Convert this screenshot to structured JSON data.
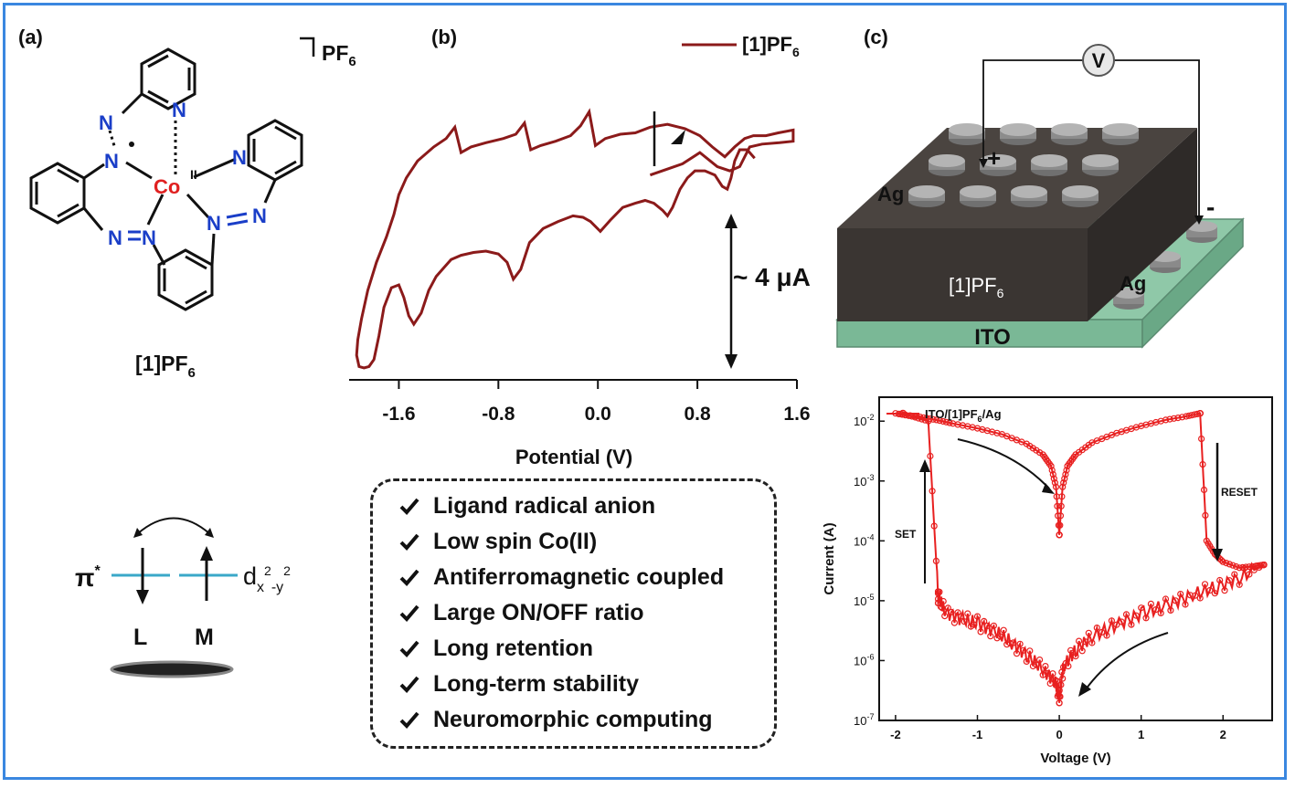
{
  "panels": {
    "a": {
      "label": "(a)",
      "compound": "[1]PF",
      "compound_sub": "6",
      "counterion": "PF",
      "counterion_sub": "6",
      "atoms": {
        "N": "N",
        "Co": "Co",
        "Co_ox": "II"
      },
      "orbital": {
        "pi": "π",
        "pi_sup": "*",
        "d": "d",
        "d_x": "x",
        "d_sup2": "2",
        "d_y": "-y",
        "d_sup2b": "2",
        "L": "L",
        "M": "M"
      }
    },
    "b": {
      "label": "(b)"
    },
    "c": {
      "label": "(c)",
      "device": {
        "voltmeter": "V",
        "plus": "+",
        "minus": "-",
        "electrode_top": "Ag",
        "electrode_side": "Ag",
        "film": "[1]PF",
        "film_sub": "6",
        "substrate": "ITO"
      }
    }
  },
  "colors": {
    "cv_trace": "#8b1a1a",
    "iv_trace": "#e82020",
    "frame": "#3a87e0",
    "device_dark": "#3a3532",
    "ito": "#8fc8a8",
    "orbital_line": "#3aa8c8"
  },
  "checklist": [
    "Ligand radical anion",
    "Low spin Co(II)",
    "Antiferromagnetic coupled",
    "Large ON/OFF ratio",
    "Long retention",
    "Long-term stability",
    "Neuromorphic computing"
  ],
  "chart_data": [
    {
      "type": "line",
      "title": "",
      "legend": [
        "[1]PF6"
      ],
      "legend_text": "[1]PF",
      "legend_sub": "6",
      "legend_position": "top-right",
      "xlabel": "Potential (V)",
      "ylabel": "",
      "xlim": [
        -2.0,
        1.6
      ],
      "xticks": [
        -1.6,
        -0.8,
        0.0,
        0.8,
        1.6
      ],
      "xtick_labels": [
        "-1.6",
        "-0.8",
        "0.0",
        "0.8",
        "1.6"
      ],
      "scale_bar_label": "~ 4 μA",
      "scale_bar_ua": 4,
      "ylim_ua": [
        -19.5,
        1.0
      ],
      "series": [
        {
          "name": "[1]PF6",
          "x": [
            0.42,
            0.55,
            0.68,
            0.82,
            0.96,
            1.06,
            1.14,
            1.22,
            1.32,
            1.46,
            1.57,
            1.57,
            1.45,
            1.35,
            1.25,
            1.18,
            1.1,
            1.02,
            0.92,
            0.82,
            0.7,
            0.56,
            0.42,
            0.3,
            0.18,
            0.06,
            -0.02,
            -0.07,
            -0.14,
            -0.22,
            -0.34,
            -0.46,
            -0.54,
            -0.59,
            -0.66,
            -0.76,
            -0.9,
            -1.02,
            -1.1,
            -1.15,
            -1.22,
            -1.32,
            -1.45,
            -1.54,
            -1.6,
            -1.64,
            -1.7,
            -1.78,
            -1.85,
            -1.9,
            -1.93,
            -1.94,
            -1.92,
            -1.88,
            -1.84,
            -1.8,
            -1.76,
            -1.72,
            -1.66,
            -1.6,
            -1.56,
            -1.52,
            -1.48,
            -1.42,
            -1.36,
            -1.3,
            -1.24,
            -1.18,
            -1.1,
            -1.0,
            -0.9,
            -0.8,
            -0.73,
            -0.68,
            -0.62,
            -0.55,
            -0.44,
            -0.32,
            -0.2,
            -0.12,
            -0.06,
            0.02,
            0.1,
            0.2,
            0.3,
            0.38,
            0.45,
            0.52,
            0.56,
            0.6,
            0.66,
            0.72,
            0.78,
            0.86,
            0.94,
            1.0,
            1.04,
            1.07,
            1.1,
            1.14,
            1.2,
            1.26
          ],
          "y_ua": [
            -5.6,
            -5.2,
            -4.8,
            -4.0,
            -5.0,
            -5.3,
            -5.0,
            -3.6,
            -3.4,
            -3.3,
            -3.2,
            -2.4,
            -2.6,
            -2.8,
            -2.8,
            -3.0,
            -3.6,
            -4.3,
            -3.6,
            -2.8,
            -2.3,
            -2.0,
            -2.2,
            -2.6,
            -2.7,
            -3.0,
            -3.5,
            -1.1,
            -2.1,
            -2.8,
            -3.2,
            -3.5,
            -3.8,
            -1.9,
            -2.7,
            -3.0,
            -3.3,
            -3.6,
            -4.0,
            -2.2,
            -3.0,
            -3.6,
            -4.6,
            -5.8,
            -7.0,
            -8.4,
            -10.0,
            -11.8,
            -13.8,
            -15.8,
            -17.3,
            -18.4,
            -19.2,
            -19.3,
            -19.2,
            -18.7,
            -17.0,
            -15.0,
            -13.6,
            -13.4,
            -14.3,
            -15.6,
            -16.2,
            -15.4,
            -13.8,
            -12.8,
            -12.2,
            -11.6,
            -11.3,
            -11.1,
            -11.0,
            -11.2,
            -11.8,
            -13.0,
            -12.3,
            -10.4,
            -9.4,
            -8.9,
            -8.5,
            -8.6,
            -8.9,
            -9.6,
            -8.8,
            -7.9,
            -7.6,
            -7.4,
            -7.6,
            -8.1,
            -8.5,
            -7.9,
            -6.6,
            -5.8,
            -5.3,
            -5.3,
            -5.6,
            -6.4,
            -6.6,
            -5.8,
            -4.6,
            -3.8,
            -3.8,
            -4.4
          ]
        }
      ],
      "arrow_annotation": "scan direction"
    },
    {
      "type": "line",
      "title": "",
      "legend": [
        "ITO/[1]PF6/Ag"
      ],
      "legend_text": "ITO/[1]PF",
      "legend_sub": "6",
      "legend_tail": "/Ag",
      "legend_position": "top-left",
      "xlabel": "Voltage (V)",
      "ylabel": "Current (A)",
      "xlim": [
        -2.2,
        2.6
      ],
      "xticks": [
        -2,
        -1,
        0,
        1,
        2
      ],
      "xtick_labels": [
        "-2",
        "-1",
        "0",
        "1",
        "2"
      ],
      "ylim_log10": [
        -7,
        -1.6
      ],
      "yticks_log10": [
        -7,
        -6,
        -5,
        -4,
        -3,
        -2
      ],
      "ytick_base": "10",
      "ytick_exps": [
        "-7",
        "-6",
        "-5",
        "-4",
        "-3",
        "-2"
      ],
      "annotations": {
        "set": "SET",
        "reset": "RESET"
      },
      "series": [
        {
          "name": "ITO/[1]PF6/Ag",
          "x": [
            -2.0,
            -1.7,
            -1.5,
            -1.3,
            -1.0,
            -0.7,
            -0.4,
            -0.2,
            -0.1,
            -0.04,
            0.0,
            0.0,
            0.04,
            0.1,
            0.2,
            0.4,
            0.7,
            1.0,
            1.3,
            1.55,
            1.72,
            1.72,
            1.8,
            1.9,
            2.0,
            2.2,
            2.4,
            2.5,
            2.5,
            2.2,
            1.9,
            1.6,
            1.3,
            1.0,
            0.7,
            0.4,
            0.2,
            0.05,
            0.0,
            0.0,
            -0.05,
            -0.2,
            -0.4,
            -0.6,
            -0.8,
            -1.0,
            -1.2,
            -1.4,
            -1.48,
            -1.48,
            -1.6,
            -1.8,
            -2.0
          ],
          "y_log10": [
            -1.87,
            -1.93,
            -1.98,
            -2.04,
            -2.12,
            -2.22,
            -2.38,
            -2.56,
            -2.75,
            -3.1,
            -3.9,
            -3.9,
            -3.1,
            -2.75,
            -2.56,
            -2.36,
            -2.2,
            -2.08,
            -1.98,
            -1.92,
            -1.87,
            -1.87,
            -4.0,
            -4.22,
            -4.35,
            -4.45,
            -4.42,
            -4.4,
            -4.4,
            -4.62,
            -4.78,
            -4.92,
            -5.08,
            -5.22,
            -5.4,
            -5.6,
            -5.82,
            -6.1,
            -6.6,
            -6.6,
            -6.35,
            -6.15,
            -5.9,
            -5.68,
            -5.5,
            -5.38,
            -5.3,
            -5.18,
            -4.92,
            -4.92,
            -2.0,
            -1.92,
            -1.87
          ]
        }
      ]
    }
  ]
}
